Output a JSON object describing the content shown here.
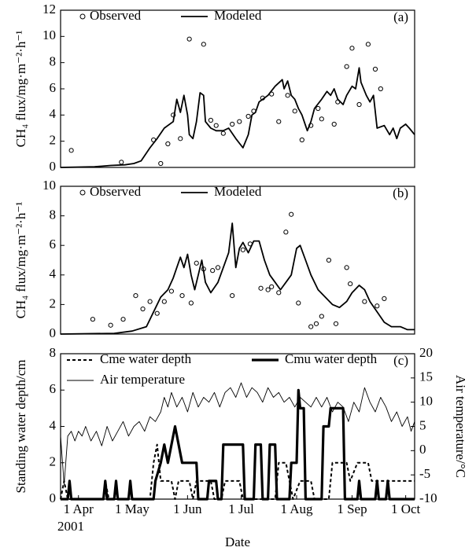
{
  "chart_data": [
    {
      "type": "line",
      "panel_label": "(a)",
      "y_label": "CH₄ flux/mg·m⁻²·h⁻¹",
      "xlim": [
        -10,
        188
      ],
      "ylim": [
        0,
        12
      ],
      "yticks": [
        0,
        2,
        4,
        6,
        8,
        10,
        12
      ],
      "series": [
        {
          "name": "Observed",
          "color": "#000000",
          "style": "markers",
          "x": [
            -4,
            24,
            42,
            46,
            50,
            53,
            57,
            62,
            70,
            74,
            77,
            81,
            86,
            90,
            95,
            98,
            103,
            108,
            112,
            117,
            121,
            125,
            130,
            134,
            136,
            143,
            145,
            150,
            153,
            157,
            162,
            166,
            169
          ],
          "values": [
            1.3,
            0.4,
            2.1,
            0.3,
            1.8,
            4.0,
            2.2,
            9.8,
            9.4,
            3.6,
            3.2,
            2.6,
            3.3,
            3.5,
            3.9,
            4.3,
            5.3,
            5.6,
            3.5,
            5.5,
            4.3,
            2.1,
            3.2,
            4.5,
            3.7,
            3.3,
            5.0,
            7.7,
            9.1,
            4.8,
            9.4,
            7.5,
            6.0
          ]
        },
        {
          "name": "Modeled",
          "color": "#000000",
          "style": "solid",
          "x": [
            -10,
            9,
            18,
            26,
            31,
            35,
            40,
            44,
            48,
            53,
            55,
            57,
            59,
            61,
            62,
            64,
            66,
            68,
            70,
            71,
            74,
            77,
            81,
            84,
            88,
            92,
            95,
            97,
            99,
            101,
            106,
            110,
            114,
            115,
            117,
            119,
            121,
            123,
            125,
            128,
            130,
            132,
            136,
            139,
            141,
            143,
            145,
            148,
            150,
            153,
            155,
            157,
            158,
            161,
            163,
            165,
            167,
            171,
            174,
            176,
            178,
            180,
            183,
            185,
            188
          ],
          "values": [
            0,
            0.05,
            0.15,
            0.2,
            0.3,
            0.5,
            1.5,
            2.2,
            3,
            3.5,
            5.2,
            4.2,
            5.5,
            4,
            2.5,
            2.2,
            3.5,
            5.7,
            5.5,
            3.5,
            3,
            2.8,
            2.8,
            3,
            2.2,
            1.5,
            2.5,
            4,
            4.2,
            5,
            5.5,
            6.2,
            6.7,
            6,
            6.6,
            5.5,
            5.2,
            4.5,
            4,
            2.8,
            3.5,
            4.5,
            5.2,
            5.8,
            5.5,
            6,
            5.2,
            4.8,
            5.5,
            6.2,
            6,
            7.6,
            6.5,
            5.5,
            5,
            5.5,
            3,
            3.2,
            2.5,
            3,
            2.2,
            3,
            3.3,
            3,
            2.5
          ]
        }
      ]
    },
    {
      "type": "line",
      "panel_label": "(b)",
      "y_label": "CH₄ flux/mg·m⁻²·h⁻¹",
      "xlim": [
        -10,
        188
      ],
      "ylim": [
        0,
        10
      ],
      "yticks": [
        0,
        2,
        4,
        6,
        8,
        10
      ],
      "series": [
        {
          "name": "Observed",
          "color": "#000000",
          "style": "markers",
          "x": [
            8,
            18,
            25,
            32,
            36,
            40,
            44,
            48,
            52,
            58,
            63,
            66,
            70,
            75,
            78,
            86,
            92,
            96,
            102,
            106,
            108,
            112,
            116,
            119,
            123,
            130,
            133,
            136,
            140,
            144,
            150,
            152,
            160,
            167,
            171
          ],
          "values": [
            1.0,
            0.6,
            1.0,
            2.6,
            1.7,
            2.2,
            1.4,
            2.2,
            2.9,
            2.6,
            2.1,
            4.8,
            4.4,
            4.3,
            4.5,
            2.6,
            5.7,
            6.1,
            3.1,
            3.0,
            3.2,
            2.8,
            6.9,
            8.1,
            2.1,
            0.5,
            0.7,
            1.2,
            5.0,
            0.7,
            4.5,
            3.4,
            2.2,
            1.9,
            2.4
          ]
        },
        {
          "name": "Modeled",
          "color": "#000000",
          "style": "solid",
          "x": [
            -10,
            20,
            30,
            38,
            42,
            46,
            50,
            53,
            55,
            57,
            59,
            61,
            63,
            65,
            67,
            69,
            71,
            74,
            78,
            81,
            84,
            86,
            88,
            90,
            92,
            95,
            98,
            101,
            104,
            107,
            110,
            113,
            116,
            119,
            122,
            124,
            127,
            130,
            134,
            138,
            142,
            146,
            150,
            153,
            157,
            160,
            163,
            167,
            171,
            175,
            180,
            184,
            188
          ],
          "values": [
            0,
            0.05,
            0.2,
            0.5,
            1.5,
            2.5,
            3,
            3.8,
            4.5,
            5.2,
            4.5,
            5.4,
            4,
            3,
            4,
            5,
            3.5,
            2.8,
            3.5,
            4.5,
            5.5,
            7.5,
            4.5,
            5.8,
            6.2,
            5.5,
            6.3,
            6.3,
            5,
            4,
            3.5,
            3,
            3.5,
            4,
            5.8,
            6,
            5,
            4,
            3,
            2.5,
            2,
            1.8,
            2.2,
            2.8,
            3.3,
            3,
            2.2,
            1.5,
            0.8,
            0.5,
            0.5,
            0.3,
            0.3
          ]
        }
      ]
    },
    {
      "type": "line",
      "panel_label": "(c)",
      "y_label": "Standing water depth/cm",
      "y2_label": "Air temperature/°C",
      "x_label": "Date",
      "annotation": "2001",
      "xlim": [
        -10,
        188
      ],
      "xticks": [
        {
          "value": 0,
          "label": "1 Apr"
        },
        {
          "value": 30,
          "label": "1 May"
        },
        {
          "value": 61,
          "label": "1 Jun"
        },
        {
          "value": 91,
          "label": "1 Jul"
        },
        {
          "value": 122,
          "label": "1 Aug"
        },
        {
          "value": 153,
          "label": "1 Sep"
        },
        {
          "value": 183,
          "label": "1 Oct"
        }
      ],
      "ylim": [
        0,
        8
      ],
      "yticks": [
        0,
        2,
        4,
        6,
        8
      ],
      "y2lim": [
        -10,
        20
      ],
      "y2ticks": [
        -10,
        -5,
        0,
        5,
        10,
        15,
        20
      ],
      "series": [
        {
          "name": "Cme water depth",
          "color": "#000000",
          "style": "dashed",
          "x": [
            -10,
            -8,
            -6,
            14,
            15,
            17,
            40,
            42,
            44,
            46,
            52,
            54,
            56,
            62,
            64,
            66,
            74,
            76,
            80,
            82,
            90,
            92,
            110,
            112,
            116,
            118,
            120,
            124,
            130,
            132,
            140,
            142,
            150,
            152,
            156,
            162,
            164,
            188
          ],
          "values": [
            0,
            1,
            0,
            0,
            1,
            0,
            0,
            2,
            3,
            1,
            1,
            0,
            1,
            1,
            0,
            1,
            1,
            0,
            0,
            1,
            1,
            0,
            0,
            2,
            2,
            1,
            0,
            1,
            1,
            0,
            0,
            2,
            2,
            1,
            2,
            2,
            1,
            1
          ]
        },
        {
          "name": "Cmu water depth",
          "color": "#000000",
          "style": "bold",
          "x": [
            -10,
            -6,
            -5,
            -4,
            14,
            15,
            16,
            20,
            21,
            22,
            28,
            29,
            30,
            42,
            43,
            46,
            48,
            50,
            54,
            56,
            58,
            66,
            67,
            72,
            73,
            77,
            78,
            80,
            81,
            92,
            93,
            98,
            99,
            102,
            103,
            106,
            107,
            110,
            111,
            118,
            119,
            122,
            123,
            124,
            126,
            127,
            136,
            137,
            140,
            141,
            148,
            149,
            156,
            157,
            158,
            166,
            167,
            168,
            172,
            173,
            174,
            188
          ],
          "values": [
            0,
            0,
            1,
            0,
            0,
            1,
            0,
            0,
            1,
            0,
            0,
            1,
            0,
            0,
            1,
            2,
            3,
            2,
            4,
            3,
            2,
            2,
            0,
            0,
            1,
            1,
            0,
            0,
            3,
            3,
            0,
            0,
            3,
            3,
            0,
            0,
            3,
            3,
            0,
            0,
            2,
            2,
            6,
            5,
            5,
            0,
            0,
            4,
            4,
            5,
            5,
            0,
            0,
            1,
            0,
            0,
            1,
            0,
            0,
            1,
            0,
            0
          ]
        },
        {
          "name": "Air temperature",
          "color": "#000000",
          "style": "thin",
          "axis": "y2",
          "x": [
            -10,
            -8,
            -6,
            -4,
            -2,
            0,
            2,
            4,
            7,
            10,
            13,
            16,
            19,
            22,
            25,
            28,
            31,
            34,
            37,
            40,
            43,
            46,
            48,
            50,
            52,
            55,
            58,
            61,
            64,
            67,
            70,
            73,
            76,
            79,
            82,
            85,
            88,
            91,
            94,
            97,
            100,
            103,
            106,
            109,
            112,
            115,
            118,
            121,
            124,
            127,
            130,
            133,
            136,
            139,
            142,
            145,
            148,
            151,
            154,
            157,
            160,
            163,
            166,
            169,
            172,
            175,
            178,
            181,
            184,
            186,
            188
          ],
          "values": [
            3,
            -7,
            3,
            4,
            2,
            4,
            3,
            5,
            2,
            4,
            1,
            5,
            2,
            4,
            6,
            3,
            5,
            6,
            4,
            7,
            6,
            8,
            11,
            9,
            12,
            9,
            11,
            8,
            12,
            9,
            11,
            10,
            12,
            9,
            12,
            13,
            11,
            14,
            11,
            13,
            12,
            10,
            13,
            11,
            12,
            10,
            11,
            9,
            11,
            10,
            9,
            11,
            9,
            11,
            8,
            10,
            9,
            6,
            10,
            8,
            13,
            10,
            8,
            11,
            9,
            6,
            8,
            5,
            7,
            4,
            6
          ]
        }
      ]
    }
  ]
}
